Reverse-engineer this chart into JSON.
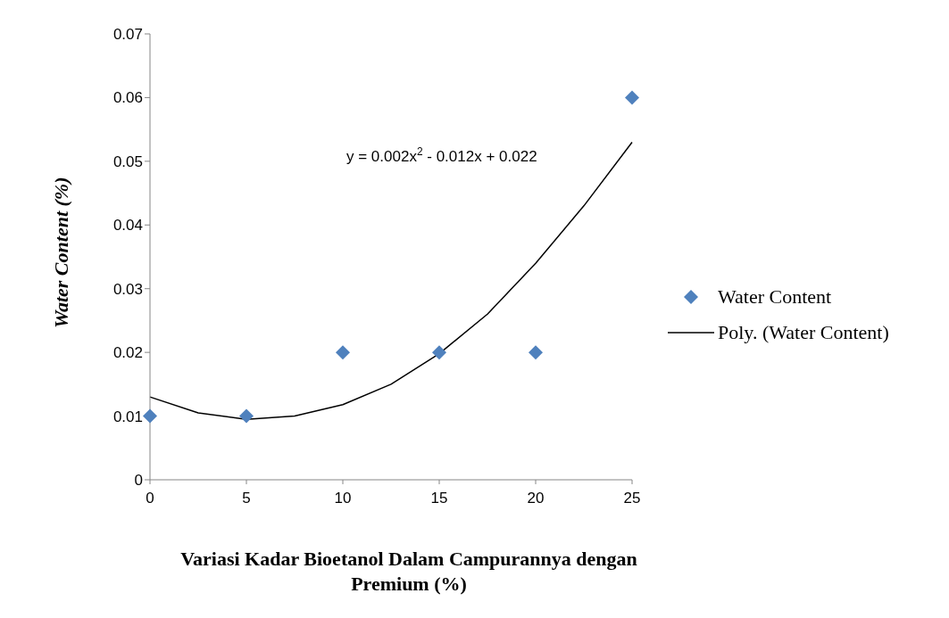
{
  "chart_data": {
    "type": "scatter",
    "xlabel": "Variasi Kadar Bioetanol Dalam Campurannya dengan Premium (%)",
    "ylabel": "Water Content (%)",
    "x": [
      0,
      5,
      10,
      15,
      20,
      25
    ],
    "series": [
      {
        "name": "Water Content",
        "type": "scatter",
        "color": "#4f81bd",
        "marker": "diamond",
        "values": [
          0.01,
          0.01,
          0.02,
          0.02,
          0.02,
          0.06
        ]
      },
      {
        "name": "Poly. (Water Content)",
        "type": "line",
        "color": "#000000",
        "marker": "none",
        "x": [
          0,
          2.5,
          5,
          7.5,
          10,
          12.5,
          15,
          17.5,
          20,
          22.5,
          25
        ],
        "values": [
          0.013,
          0.0105,
          0.0095,
          0.01,
          0.0118,
          0.015,
          0.0198,
          0.026,
          0.034,
          0.043,
          0.053
        ]
      }
    ],
    "annotations": [
      "y = 0.002x$^{2}$ - 0.012x + 0.022"
    ],
    "xlim": [
      0,
      25
    ],
    "xticks": [
      0,
      5,
      10,
      15,
      20,
      25
    ],
    "ylim": [
      0,
      0.07
    ],
    "yticks": [
      0,
      0.01,
      0.02,
      0.03,
      0.04,
      0.05,
      0.06,
      0.07
    ],
    "grid": false,
    "legend": "right"
  }
}
